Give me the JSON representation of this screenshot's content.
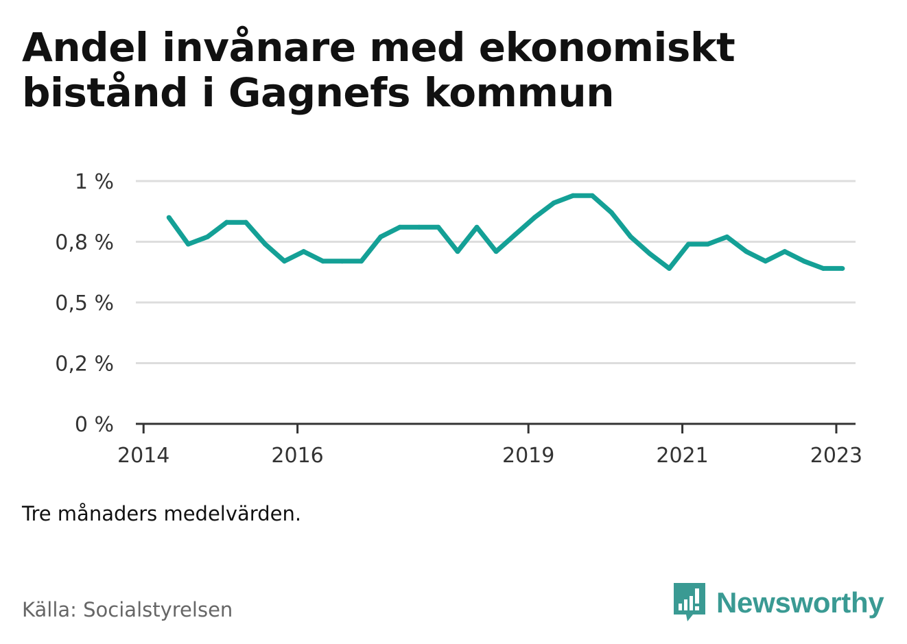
{
  "title": "Andel invånare med ekonomiskt bistånd i Gagnefs kommun",
  "note": "Tre månaders medelvärden.",
  "source": "Källa: Socialstyrelsen",
  "brand": {
    "name": "Newsworthy",
    "icon": "bar-chart-speech-bubble-icon",
    "color": "#3a9a93"
  },
  "colors": {
    "line": "#14a096",
    "grid": "#dddddd",
    "axis": "#333333",
    "text": "#333333"
  },
  "chart_data": {
    "type": "line",
    "title": "Andel invånare med ekonomiskt bistånd i Gagnefs kommun",
    "xlabel": "",
    "ylabel": "",
    "x_range": [
      2013.9,
      2023.25
    ],
    "ylim": [
      0,
      1.0
    ],
    "y_ticks": [
      {
        "value": 0,
        "label": "0 %"
      },
      {
        "value": 0.25,
        "label": "0,2 %"
      },
      {
        "value": 0.5,
        "label": "0,5 %"
      },
      {
        "value": 0.75,
        "label": "0,8 %"
      },
      {
        "value": 1.0,
        "label": "1 %"
      }
    ],
    "x_ticks": [
      {
        "value": 2014,
        "label": "2014"
      },
      {
        "value": 2016,
        "label": "2016"
      },
      {
        "value": 2019,
        "label": "2019"
      },
      {
        "value": 2021,
        "label": "2021"
      },
      {
        "value": 2023,
        "label": "2023"
      }
    ],
    "grid": true,
    "series": [
      {
        "color": "#14a096",
        "x": [
          2014.33,
          2014.58,
          2014.83,
          2015.08,
          2015.33,
          2015.58,
          2015.83,
          2016.08,
          2016.33,
          2016.58,
          2016.83,
          2017.08,
          2017.33,
          2017.58,
          2017.83,
          2018.08,
          2018.33,
          2018.58,
          2018.83,
          2019.08,
          2019.33,
          2019.58,
          2019.83,
          2020.08,
          2020.33,
          2020.58,
          2020.83,
          2021.08,
          2021.33,
          2021.58,
          2021.83,
          2022.08,
          2022.33,
          2022.58,
          2022.83,
          2023.08
        ],
        "values": [
          0.85,
          0.74,
          0.77,
          0.83,
          0.83,
          0.74,
          0.67,
          0.71,
          0.67,
          0.67,
          0.67,
          0.77,
          0.81,
          0.81,
          0.81,
          0.71,
          0.81,
          0.71,
          0.78,
          0.85,
          0.91,
          0.94,
          0.94,
          0.87,
          0.77,
          0.7,
          0.64,
          0.74,
          0.74,
          0.77,
          0.71,
          0.67,
          0.71,
          0.67,
          0.64,
          0.64
        ]
      }
    ]
  }
}
